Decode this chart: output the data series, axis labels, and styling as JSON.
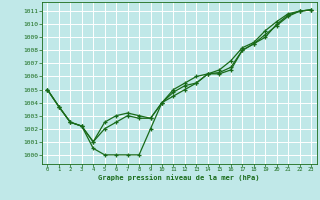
{
  "title": "Graphe pression niveau de la mer (hPa)",
  "xlim": [
    -0.5,
    23.5
  ],
  "ylim": [
    999.3,
    1011.7
  ],
  "yticks": [
    1000,
    1001,
    1002,
    1003,
    1004,
    1005,
    1006,
    1007,
    1008,
    1009,
    1010,
    1011
  ],
  "xticks": [
    0,
    1,
    2,
    3,
    4,
    5,
    6,
    7,
    8,
    9,
    10,
    11,
    12,
    13,
    14,
    15,
    16,
    17,
    18,
    19,
    20,
    21,
    22,
    23
  ],
  "bg_color": "#c0e8e8",
  "grid_color": "#ffffff",
  "line_color": "#1a6b1a",
  "line1_x": [
    0,
    1,
    2,
    3,
    4,
    5,
    6,
    7,
    8,
    9,
    10,
    11,
    12,
    13,
    14,
    15,
    16,
    17,
    18,
    19,
    20,
    21,
    22,
    23
  ],
  "line1_y": [
    1005.0,
    1003.7,
    1002.5,
    1002.2,
    1000.5,
    1000.0,
    1000.0,
    1000.0,
    1000.0,
    1002.0,
    1004.0,
    1004.5,
    1005.0,
    1005.5,
    1006.2,
    1006.2,
    1006.5,
    1008.0,
    1008.5,
    1009.0,
    1010.0,
    1010.7,
    1011.0,
    1011.1
  ],
  "line2_x": [
    0,
    1,
    2,
    3,
    4,
    5,
    6,
    7,
    8,
    9,
    10,
    11,
    12,
    13,
    14,
    15,
    16,
    17,
    18,
    19,
    20,
    21,
    22,
    23
  ],
  "line2_y": [
    1005.0,
    1003.7,
    1002.5,
    1002.2,
    1001.0,
    1002.0,
    1002.5,
    1003.0,
    1002.8,
    1002.8,
    1004.0,
    1004.8,
    1005.3,
    1005.5,
    1006.2,
    1006.3,
    1006.7,
    1008.0,
    1008.5,
    1009.2,
    1009.9,
    1010.6,
    1011.0,
    1011.1
  ],
  "line3_x": [
    0,
    1,
    2,
    3,
    4,
    5,
    6,
    7,
    8,
    9,
    10,
    11,
    12,
    13,
    14,
    15,
    16,
    17,
    18,
    19,
    20,
    21,
    22,
    23
  ],
  "line3_y": [
    1005.0,
    1003.7,
    1002.5,
    1002.2,
    1001.0,
    1002.5,
    1003.0,
    1003.2,
    1003.0,
    1002.8,
    1004.0,
    1005.0,
    1005.5,
    1006.0,
    1006.2,
    1006.5,
    1007.2,
    1008.2,
    1008.6,
    1009.5,
    1010.2,
    1010.8,
    1011.0,
    1011.1
  ]
}
